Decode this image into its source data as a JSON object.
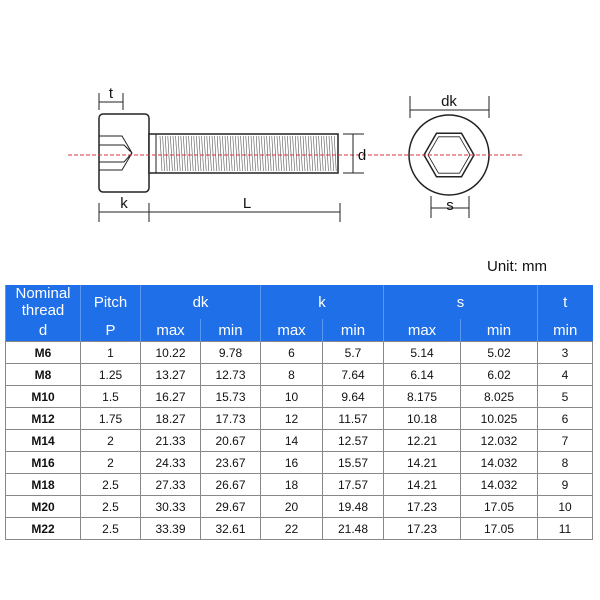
{
  "diagram": {
    "labels": {
      "t": "t",
      "k": "k",
      "L": "L",
      "d": "d",
      "dk": "dk",
      "s": "s"
    },
    "colors": {
      "centerline": "#d9333f",
      "outline": "#222222"
    }
  },
  "unit_label": "Unit: mm",
  "table": {
    "header_color": "#1f6fe8",
    "header_top": {
      "nominal": "Nominal thread",
      "pitch": "Pitch",
      "dk": "dk",
      "k": "k",
      "s": "s",
      "t": "t"
    },
    "header_bottom": {
      "nominal": "d",
      "pitch": "P",
      "dk_max": "max",
      "dk_min": "min",
      "k_max": "max",
      "k_min": "min",
      "s_max": "max",
      "s_min": "min",
      "t_min": "min"
    },
    "rows": [
      [
        "M6",
        "1",
        "10.22",
        "9.78",
        "6",
        "5.7",
        "5.14",
        "5.02",
        "3"
      ],
      [
        "M8",
        "1.25",
        "13.27",
        "12.73",
        "8",
        "7.64",
        "6.14",
        "6.02",
        "4"
      ],
      [
        "M10",
        "1.5",
        "16.27",
        "15.73",
        "10",
        "9.64",
        "8.175",
        "8.025",
        "5"
      ],
      [
        "M12",
        "1.75",
        "18.27",
        "17.73",
        "12",
        "11.57",
        "10.18",
        "10.025",
        "6"
      ],
      [
        "M14",
        "2",
        "21.33",
        "20.67",
        "14",
        "12.57",
        "12.21",
        "12.032",
        "7"
      ],
      [
        "M16",
        "2",
        "24.33",
        "23.67",
        "16",
        "15.57",
        "14.21",
        "14.032",
        "8"
      ],
      [
        "M18",
        "2.5",
        "27.33",
        "26.67",
        "18",
        "17.57",
        "14.21",
        "14.032",
        "9"
      ],
      [
        "M20",
        "2.5",
        "30.33",
        "29.67",
        "20",
        "19.48",
        "17.23",
        "17.05",
        "10"
      ],
      [
        "M22",
        "2.5",
        "33.39",
        "32.61",
        "22",
        "21.48",
        "17.23",
        "17.05",
        "11"
      ]
    ]
  }
}
